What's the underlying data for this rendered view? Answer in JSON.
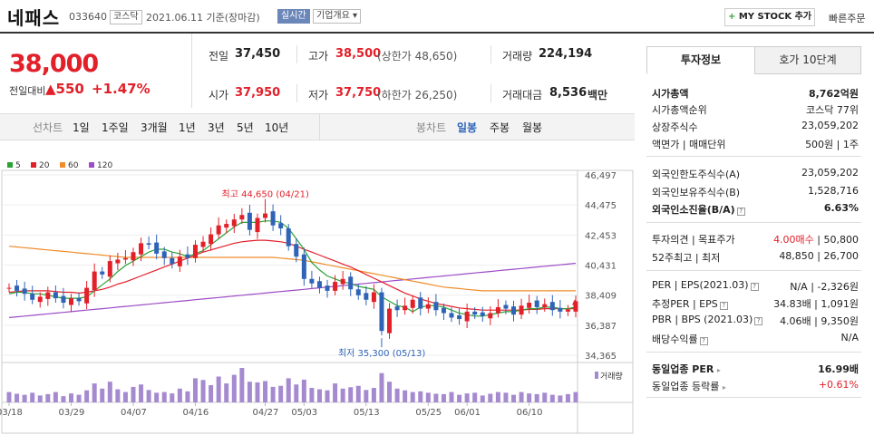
{
  "header": {
    "name": "네패스",
    "code": "033640",
    "market": "코스닥",
    "date": "2021.06.11 기준(장마감)",
    "realtime": "실시간",
    "company": "기업개요 ▾",
    "mystock": "MY STOCK 추가",
    "quick_order": "빠른주문"
  },
  "price": {
    "current": "38,000",
    "diff_label": "전일대비",
    "diff_value": "▲550",
    "diff_rate": "+1.47%"
  },
  "quotes": {
    "prev_label": "전일",
    "prev": "37,450",
    "high_label": "고가",
    "high": "38,500",
    "upper_limit": "(상한가 48,650)",
    "volume_label": "거래량",
    "volume": "224,194",
    "open_label": "시가",
    "open": "37,950",
    "low_label": "저가",
    "low": "37,750",
    "lower_limit": "(하한가 26,250)",
    "amount_label": "거래대금",
    "amount": "8,536",
    "amount_unit": "백만"
  },
  "periods": {
    "line_label": "선차트",
    "items": [
      "1일",
      "1주일",
      "3개월",
      "1년",
      "3년",
      "5년",
      "10년"
    ],
    "candle_label": "봉차트",
    "candle_items": [
      "일봉",
      "주봉",
      "월봉"
    ]
  },
  "colors": {
    "up": "#e2202a",
    "down": "#2e63b8",
    "ma5": "#2aa335",
    "ma20": "#e2202a",
    "ma60": "#f08c2a",
    "ma120": "#9c4cc6"
  },
  "chart_data": {
    "type": "candlestick",
    "legend": [
      "5",
      "20",
      "60",
      "120"
    ],
    "y_ticks": [
      "46,497",
      "44,475",
      "42,453",
      "40,431",
      "38,409",
      "36,387",
      "34,365"
    ],
    "ylim": [
      34365,
      46497
    ],
    "x_ticks": [
      "03/18",
      "03/29",
      "04/07",
      "04/16",
      "04/27",
      "05/03",
      "05/13",
      "05/25",
      "06/01",
      "06/10"
    ],
    "annotations": {
      "high": "최고 44,650 (04/21)",
      "low": "최저 35,300 (05/13)"
    },
    "volume_label": "거래량",
    "closes": [
      38900,
      38700,
      38500,
      38100,
      38300,
      38600,
      38200,
      37900,
      38200,
      38000,
      38900,
      40000,
      39800,
      40700,
      40800,
      40900,
      41300,
      41900,
      41800,
      41200,
      40900,
      40500,
      41000,
      40900,
      41800,
      42000,
      42500,
      43100,
      43200,
      43500,
      43800,
      42800,
      43600,
      43900,
      43100,
      42900,
      41700,
      41000,
      39500,
      39200,
      38900,
      38700,
      39300,
      39500,
      38800,
      38400,
      38100,
      38600,
      36000,
      37500,
      37400,
      37700,
      38100,
      37500,
      37800,
      37400,
      37200,
      36900,
      36800,
      37300,
      37100,
      37000,
      37200,
      37600,
      37500,
      37100,
      37700,
      37900,
      37600,
      37800,
      37400,
      37300,
      37450,
      38000
    ],
    "ma5": [
      38500,
      38600,
      38600,
      38500,
      38500,
      38400,
      38300,
      38200,
      38200,
      38200,
      38300,
      38700,
      39100,
      39500,
      40000,
      40400,
      40700,
      41000,
      41300,
      41500,
      41500,
      41300,
      41200,
      41000,
      41200,
      41400,
      41800,
      42200,
      42600,
      43000,
      43300,
      43300,
      43300,
      43400,
      43400,
      43300,
      42900,
      42200,
      41500,
      40600,
      40100,
      39700,
      39500,
      39300,
      39200,
      39000,
      38900,
      38800,
      38300,
      38000,
      37700,
      37600,
      37300,
      37600,
      37700,
      37700,
      37600,
      37400,
      37200,
      37100,
      37000,
      37000,
      37100,
      37200,
      37300,
      37300,
      37400,
      37500,
      37500,
      37600,
      37600,
      37500,
      37500,
      37600
    ],
    "ma20": [
      38600,
      38650,
      38700,
      38700,
      38700,
      38700,
      38650,
      38600,
      38600,
      38550,
      38600,
      38700,
      38800,
      38950,
      39150,
      39300,
      39500,
      39700,
      39900,
      40100,
      40300,
      40500,
      40700,
      40900,
      41100,
      41300,
      41450,
      41600,
      41750,
      41900,
      42000,
      42050,
      42100,
      42100,
      42050,
      42000,
      41900,
      41700,
      41500,
      41300,
      41100,
      40900,
      40700,
      40500,
      40300,
      40050,
      39800,
      39550,
      39300,
      39050,
      38800,
      38550,
      38350,
      38150,
      38000,
      37850,
      37750,
      37650,
      37550,
      37500,
      37450,
      37400,
      37400,
      37400,
      37400,
      37400,
      37400,
      37450,
      37450,
      37500,
      37500,
      37500,
      37500,
      37500
    ],
    "ma60": [
      41700,
      41650,
      41600,
      41550,
      41500,
      41450,
      41400,
      41350,
      41300,
      41250,
      41200,
      41150,
      41100,
      41050,
      41000,
      40950,
      40950,
      40950,
      40950,
      40950,
      40950,
      40950,
      40950,
      40950,
      40950,
      40950,
      40950,
      40950,
      40950,
      40950,
      40950,
      40950,
      40950,
      40950,
      40950,
      40900,
      40850,
      40800,
      40750,
      40650,
      40550,
      40450,
      40350,
      40250,
      40150,
      40050,
      39950,
      39850,
      39750,
      39650,
      39550,
      39450,
      39350,
      39250,
      39150,
      39050,
      38950,
      38900,
      38850,
      38800,
      38750,
      38700,
      38700,
      38700,
      38700,
      38700,
      38700,
      38700,
      38700,
      38700,
      38700,
      38700,
      38700,
      38700
    ],
    "ma120": [
      36900,
      36950,
      37000,
      37050,
      37100,
      37150,
      37200,
      37250,
      37300,
      37350,
      37400,
      37450,
      37500,
      37550,
      37600,
      37650,
      37700,
      37750,
      37800,
      37850,
      37900,
      37950,
      38000,
      38050,
      38100,
      38150,
      38200,
      38250,
      38300,
      38350,
      38400,
      38450,
      38500,
      38550,
      38600,
      38650,
      38700,
      38750,
      38800,
      38850,
      38900,
      38950,
      39000,
      39050,
      39100,
      39150,
      39200,
      39250,
      39300,
      39350,
      39400,
      39450,
      39500,
      39550,
      39600,
      39650,
      39700,
      39750,
      39800,
      39850,
      39900,
      39950,
      40000,
      40050,
      40100,
      40150,
      40200,
      40250,
      40300,
      40350,
      40400,
      40450,
      40500,
      40550
    ],
    "volumes": [
      30,
      25,
      22,
      28,
      20,
      24,
      30,
      18,
      26,
      22,
      35,
      55,
      40,
      60,
      38,
      30,
      45,
      52,
      36,
      28,
      30,
      26,
      40,
      32,
      70,
      65,
      50,
      75,
      55,
      80,
      100,
      60,
      58,
      62,
      45,
      48,
      70,
      52,
      66,
      42,
      38,
      35,
      55,
      40,
      44,
      48,
      36,
      42,
      85,
      60,
      40,
      35,
      30,
      32,
      28,
      25,
      24,
      30,
      22,
      26,
      28,
      20,
      25,
      30,
      28,
      22,
      30,
      26,
      24,
      28,
      22,
      20,
      24,
      30
    ]
  },
  "panel": {
    "tab_invest": "투자정보",
    "tab_hoga": "호가 10단계",
    "market_cap_label": "시가총액",
    "market_cap": "8,762억원",
    "rank_label": "시가총액순위",
    "rank": "코스닥 77위",
    "shares_label": "상장주식수",
    "shares": "23,059,202",
    "par_label": "액면가 | 매매단위",
    "par": "500원 | 1주",
    "foreign_limit_label": "외국인한도주식수(A)",
    "foreign_limit": "23,059,202",
    "foreign_hold_label": "외국인보유주식수(B)",
    "foreign_hold": "1,528,716",
    "foreign_rate_label": "외국인소진율(B/A)",
    "foreign_rate": "6.63%",
    "opinion_label": "투자의견 | 목표주가",
    "opinion": "4.00매수",
    "target": "50,800",
    "week52_label": "52주최고 | 최저",
    "week52": "48,850 | 26,700",
    "per_label": "PER | EPS(2021.03)",
    "per": "N/A | -2,326원",
    "est_per_label": "추정PER | EPS",
    "est_per": "34.83배 | 1,091원",
    "pbr_label": "PBR | BPS (2021.03)",
    "pbr": "4.06배 | 9,350원",
    "dividend_label": "배당수익률",
    "dividend": "N/A",
    "sector_per_label": "동일업종 PER",
    "sector_per": "16.99배",
    "sector_rate_label": "동일업종 등락률",
    "sector_rate": "+0.61%"
  }
}
